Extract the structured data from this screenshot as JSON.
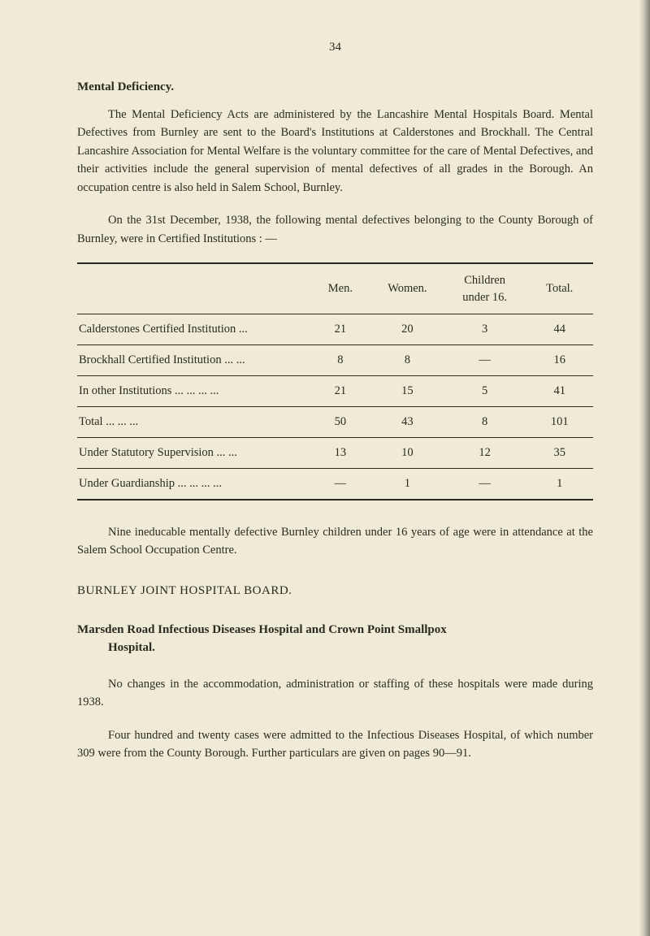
{
  "page_number": "34",
  "section_title": "Mental Deficiency.",
  "para1": "The Mental Deficiency Acts are administered by the Lancashire Mental Hospitals Board. Mental Defectives from Burnley are sent to the Board's Institutions at Calderstones and Brockhall. The Central Lancashire Association for Mental Welfare is the voluntary committee for the care of Mental Defectives, and their activities include the general supervision of mental defectives of all grades in the Borough. An occupation centre is also held in Salem School, Burnley.",
  "para2": "On the 31st December, 1938, the following mental defectives belonging to the County Borough of Burnley, were in Certified Institutions : —",
  "table": {
    "headers": {
      "men": "Men.",
      "women": "Women.",
      "children": "Children under 16.",
      "total": "Total."
    },
    "rows": [
      {
        "label": "Calderstones Certified Institution     ...",
        "men": "21",
        "women": "20",
        "children": "3",
        "total": "44"
      },
      {
        "label": "Brockhall Certified Institution ...     ...",
        "men": "8",
        "women": "8",
        "children": "—",
        "total": "16"
      },
      {
        "label": "In other Institutions ...     ...     ...     ...",
        "men": "21",
        "women": "15",
        "children": "5",
        "total": "41"
      }
    ],
    "total_row": {
      "label": "Total     ...     ...     ...",
      "men": "50",
      "women": "43",
      "children": "8",
      "total": "101"
    },
    "extra_rows": [
      {
        "label": "Under Statutory Supervision     ...     ...",
        "men": "13",
        "women": "10",
        "children": "12",
        "total": "35"
      },
      {
        "label": "Under Guardianship ...     ...     ...     ...",
        "men": "—",
        "women": "1",
        "children": "—",
        "total": "1"
      }
    ]
  },
  "para3": "Nine ineducable mentally defective Burnley children under 16 years of age were in attendance at the Salem School Occupation Centre.",
  "board_heading": "BURNLEY   JOINT   HOSPITAL   BOARD.",
  "sub_heading_line1": "Marsden   Road   Infectious   Diseases   Hospital   and   Crown   Point   Smallpox",
  "sub_heading_line2": "Hospital.",
  "para4": "No changes in the accommodation, administration or staffing of these hospitals were made during 1938.",
  "para5": "Four hundred and twenty cases were admitted to the Infectious Diseases Hospital, of which number 309 were from the County Borough. Further particulars are given on pages 90—91."
}
